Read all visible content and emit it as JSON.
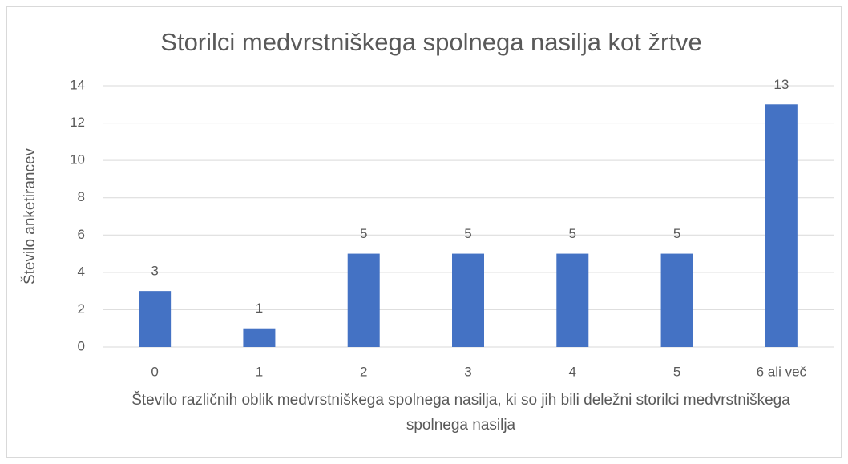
{
  "chart_data": {
    "type": "bar",
    "title": "Storilci medvrstniškega spolnega nasilja kot žrtve",
    "ylabel": "Število anketirancev",
    "xlabel": "Število različnih oblik medvrstniškega spolnega nasilja, ki so jih bili deležni storilci medvrstniškega spolnega nasilja",
    "categories": [
      "0",
      "1",
      "2",
      "3",
      "4",
      "5",
      "6 ali več"
    ],
    "values": [
      3,
      1,
      5,
      5,
      5,
      5,
      13
    ],
    "color": "#4472c4",
    "ylim": [
      0,
      14
    ],
    "yticks": [
      0,
      2,
      4,
      6,
      8,
      10,
      12,
      14
    ],
    "grid": true
  }
}
